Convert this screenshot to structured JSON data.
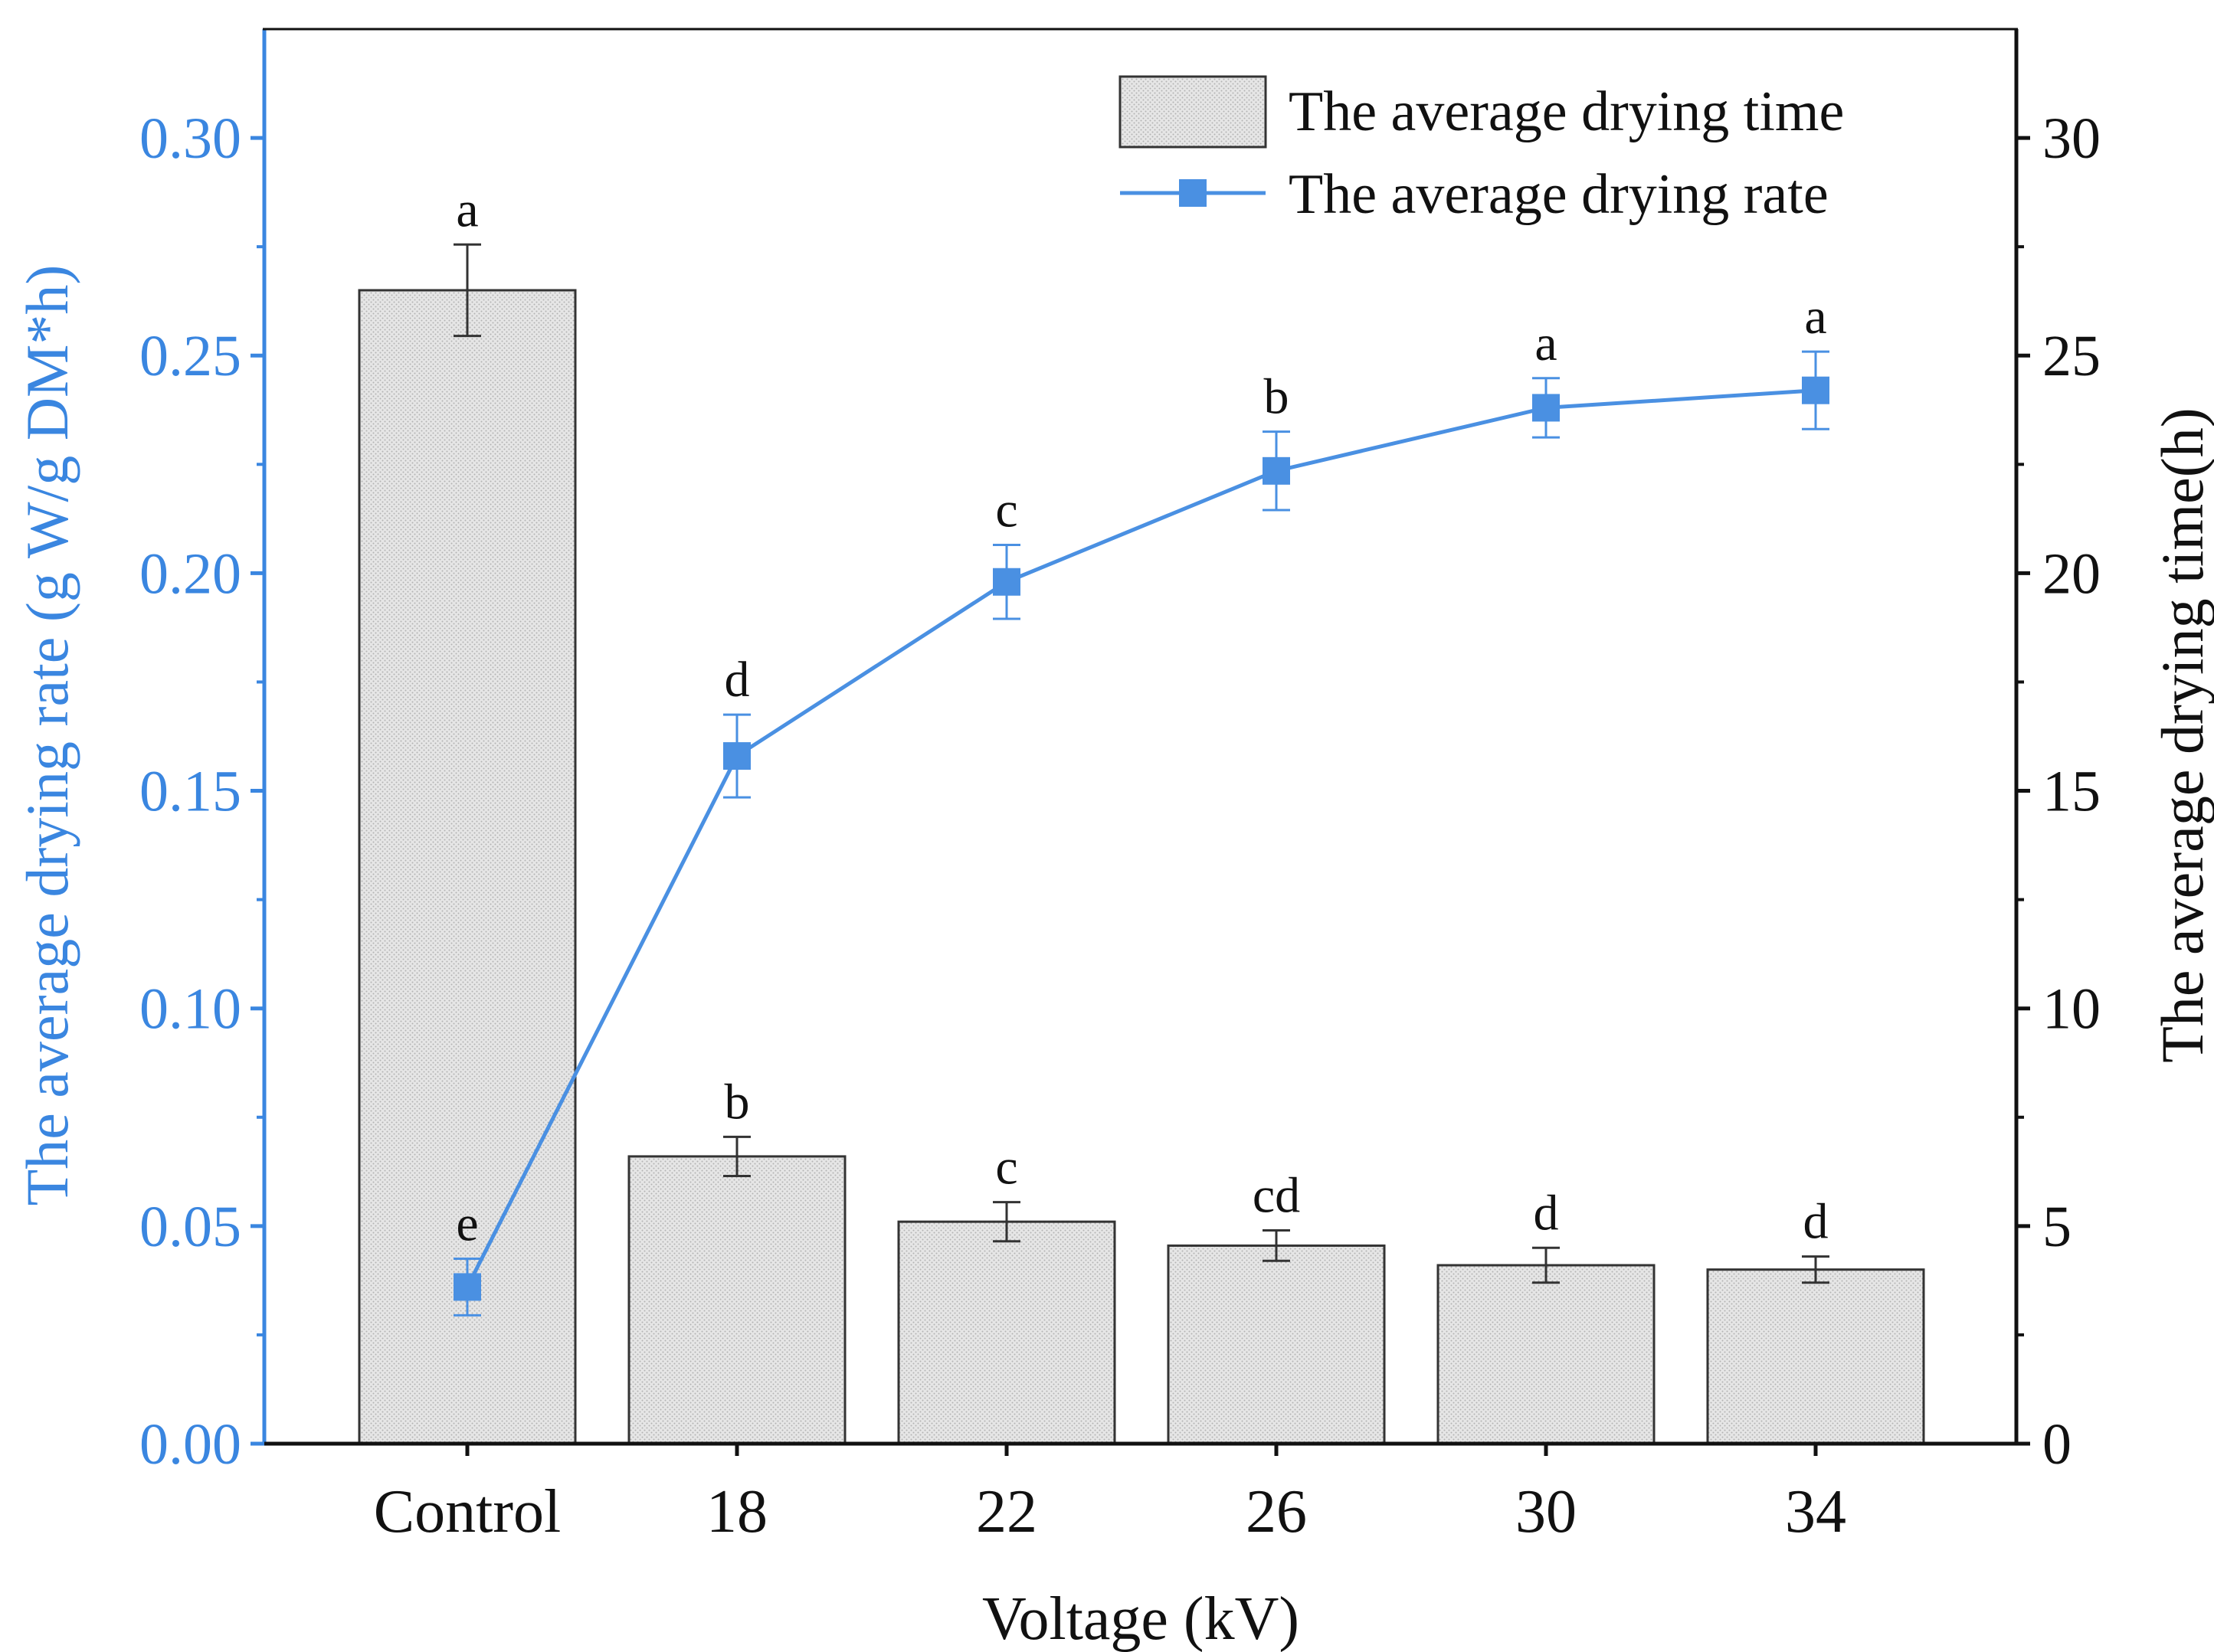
{
  "chart_data": {
    "type": "bar",
    "categories": [
      "Control",
      "18",
      "22",
      "26",
      "30",
      "34"
    ],
    "xlabel": "Voltage (kV)",
    "ylabel_left": "The average drying rate (g W/g DM*h)",
    "ylabel_right": "The average drying time(h)",
    "ylim_left": [
      0,
      0.325
    ],
    "ylim_right": [
      0,
      32.5
    ],
    "yticks_left": [
      "0.00",
      "0.05",
      "0.10",
      "0.15",
      "0.20",
      "0.25",
      "0.30"
    ],
    "yticks_right": [
      "0",
      "5",
      "10",
      "15",
      "20",
      "25",
      "30"
    ],
    "legend_position": "top-right",
    "colors": {
      "rate": "#4A90E2",
      "bar_fill": "#e4e4e4",
      "bar_stroke": "#333333",
      "left_axis": "#3a86e0"
    },
    "series": [
      {
        "name": "The average drying time",
        "kind": "bar",
        "axis": "right",
        "values": [
          26.5,
          6.6,
          5.1,
          4.55,
          4.1,
          4.0
        ],
        "errors": [
          1.05,
          0.45,
          0.45,
          0.35,
          0.4,
          0.3
        ],
        "letters": [
          "a",
          "b",
          "c",
          "cd",
          "d",
          "d"
        ]
      },
      {
        "name": "The average drying rate",
        "kind": "line",
        "axis": "left",
        "values": [
          0.036,
          0.158,
          0.198,
          0.2235,
          0.238,
          0.242
        ],
        "errors": [
          0.0065,
          0.0095,
          0.0085,
          0.009,
          0.0068,
          0.0089
        ],
        "letters": [
          "e",
          "d",
          "c",
          "b",
          "a",
          "a"
        ]
      }
    ]
  }
}
